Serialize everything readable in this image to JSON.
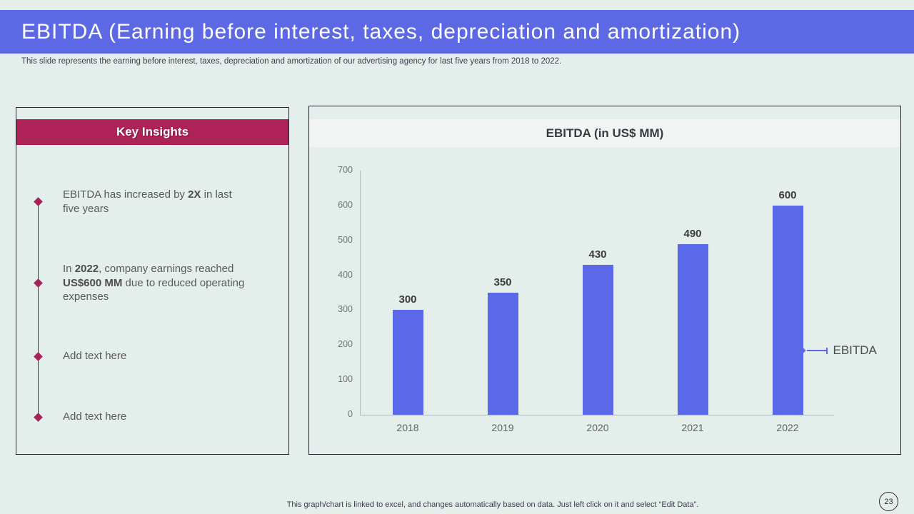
{
  "slide": {
    "title": "EBITDA (Earning before interest, taxes, depreciation and amortization)",
    "subtitle": "This slide represents the earning before interest, taxes, depreciation and amortization of our advertising agency for last five years from 2018 to 2022.",
    "footer": "This graph/chart is linked to excel,  and changes automatically based on data. Just left click on it and select “Edit Data”.",
    "page_number": "23"
  },
  "key_insights": {
    "heading": "Key Insights",
    "bullets": [
      {
        "segments": [
          {
            "text": "EBITDA has increased by ",
            "bold": false
          },
          {
            "text": "2X",
            "bold": true
          },
          {
            "text": " in last five years",
            "bold": false
          }
        ]
      },
      {
        "segments": [
          {
            "text": "In ",
            "bold": false
          },
          {
            "text": "2022",
            "bold": true
          },
          {
            "text": ", company earnings reached ",
            "bold": false
          },
          {
            "text": "US$600 MM",
            "bold": true
          },
          {
            "text": " due to reduced operating expenses",
            "bold": false
          }
        ]
      },
      {
        "segments": [
          {
            "text": "Add text here",
            "bold": false
          }
        ]
      },
      {
        "segments": [
          {
            "text": "Add text here",
            "bold": false
          }
        ]
      }
    ]
  },
  "chart_data": {
    "type": "bar",
    "title": "EBITDA (in US$ MM)",
    "categories": [
      "2018",
      "2019",
      "2020",
      "2021",
      "2022"
    ],
    "values": [
      300,
      350,
      430,
      490,
      600
    ],
    "series_name": "EBITDA",
    "xlabel": "",
    "ylabel": "",
    "ylim": [
      0,
      700
    ],
    "yticks": [
      0,
      100,
      200,
      300,
      400,
      500,
      600,
      700
    ],
    "grid": false,
    "legend_position": "right",
    "data_labels": true
  },
  "colors": {
    "accent_purple": "#5c68e4",
    "bar_purple": "#5b68e8",
    "magenta": "#ad2257",
    "diamond_magenta": "#a62457",
    "background_mint": "#e4eeeb",
    "panel_border": "#23232d",
    "title_band_bg": "#f1f4f2",
    "text_gray": "#595959"
  }
}
